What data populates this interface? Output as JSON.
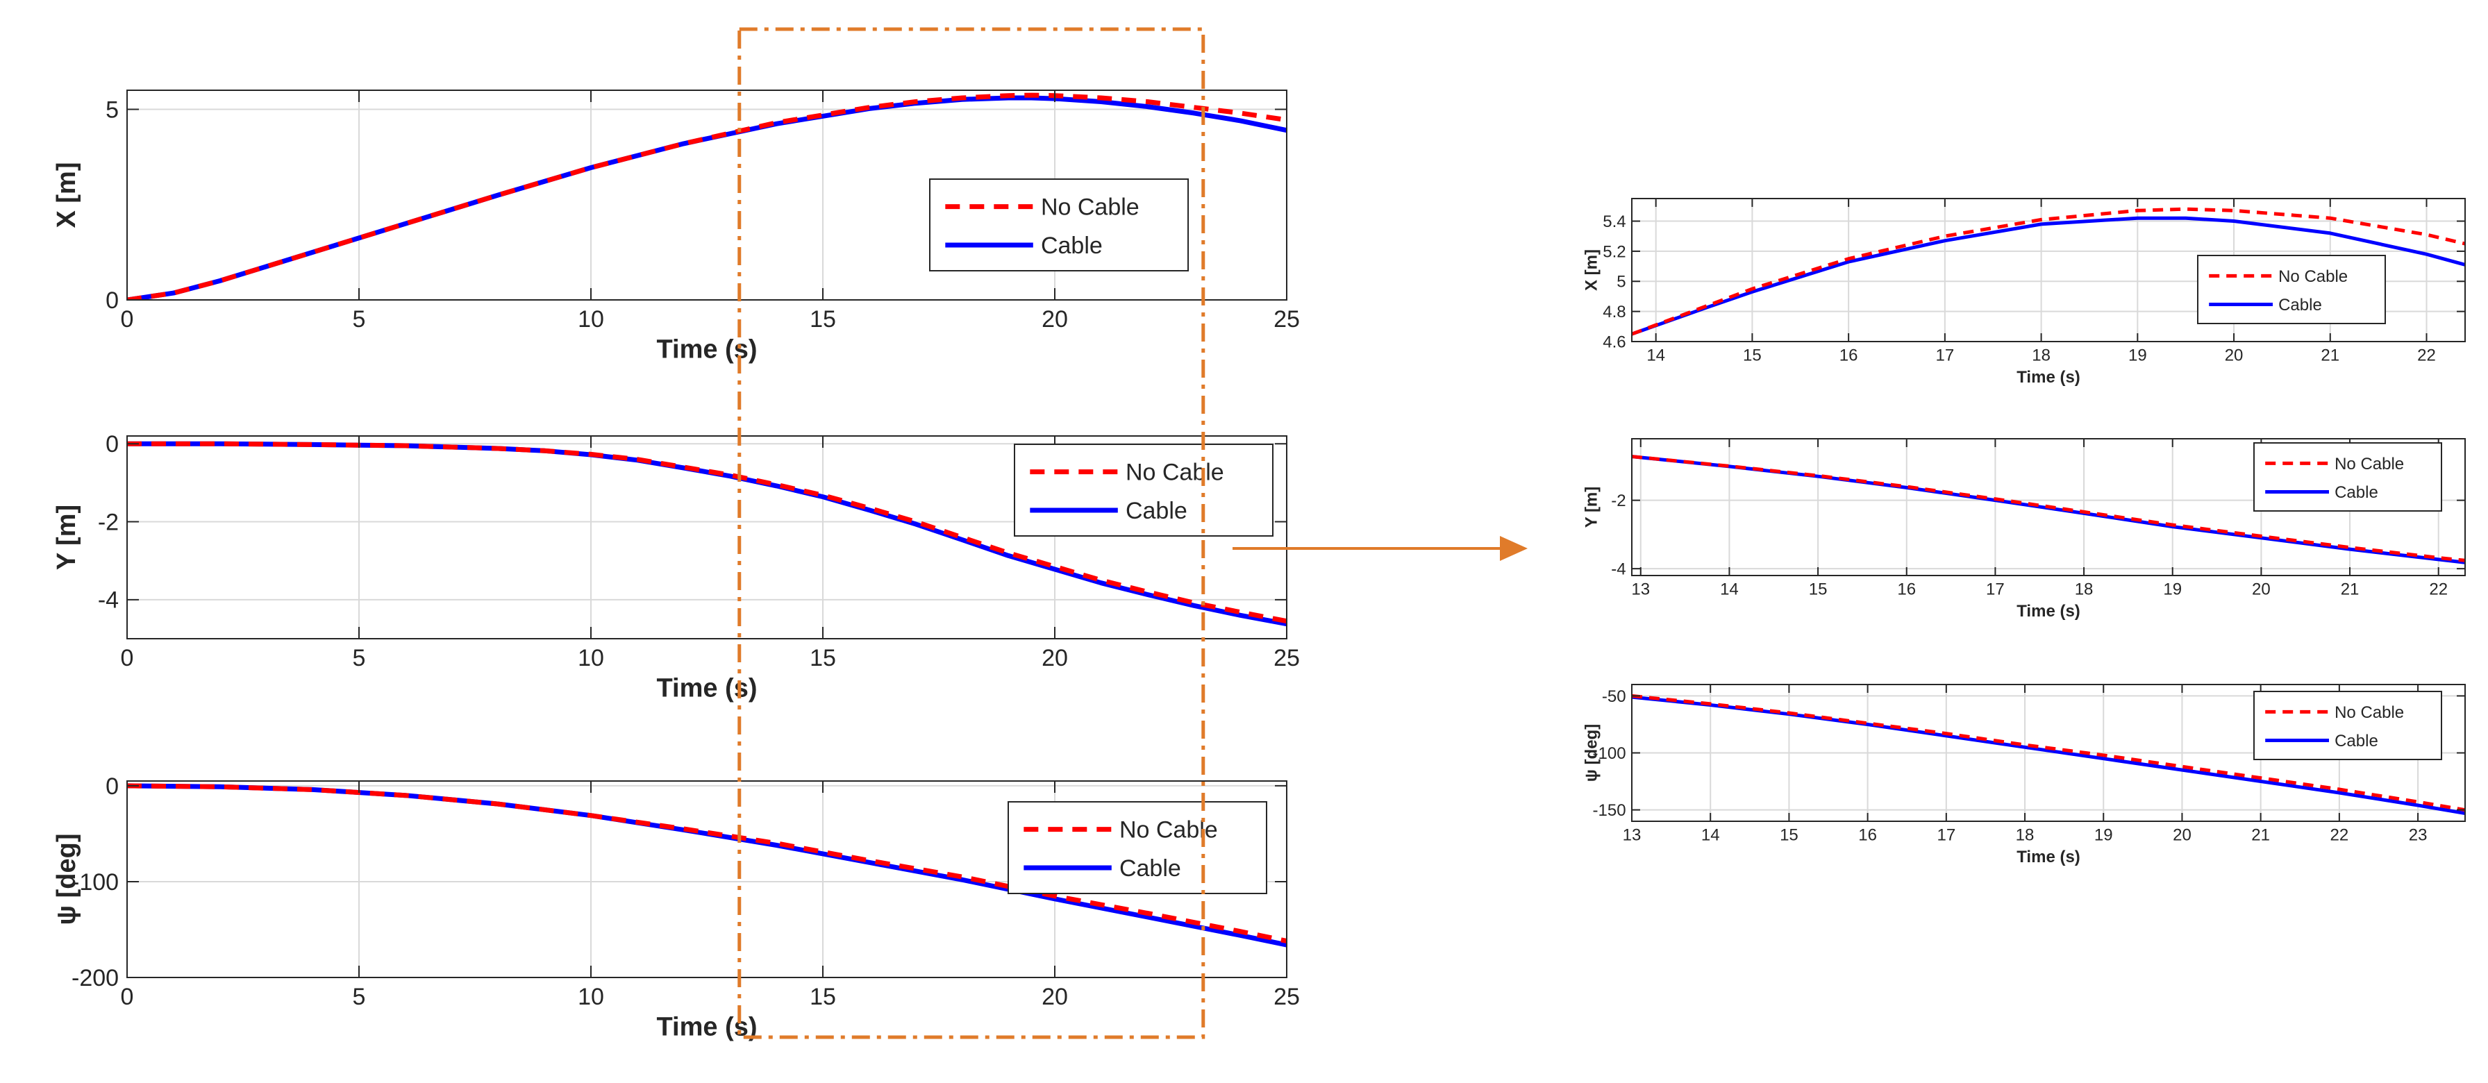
{
  "chart_data": [
    {
      "id": "main-x",
      "type": "line",
      "ylabel": "X [m]",
      "xlabel": "Time (s)",
      "xlim": [
        0,
        25
      ],
      "ylim": [
        0,
        5.5
      ],
      "xticks": [
        0,
        5,
        10,
        15,
        20,
        25
      ],
      "yticks": [
        0,
        5
      ],
      "grid": true,
      "legend": "center-right",
      "series": [
        {
          "name": "No Cable",
          "color": "#ff0000",
          "style": "dashed",
          "x": [
            0,
            1,
            2,
            4,
            6,
            8,
            10,
            12,
            14,
            16,
            17,
            18,
            19,
            19.5,
            20,
            21,
            22,
            23,
            24,
            25
          ],
          "y": [
            0,
            0.18,
            0.5,
            1.25,
            2.0,
            2.75,
            3.47,
            4.1,
            4.65,
            5.05,
            5.2,
            5.3,
            5.36,
            5.37,
            5.36,
            5.3,
            5.2,
            5.05,
            4.9,
            4.72
          ]
        },
        {
          "name": "Cable",
          "color": "#0000ff",
          "style": "solid",
          "x": [
            0,
            1,
            2,
            4,
            6,
            8,
            10,
            12,
            14,
            16,
            17,
            18,
            19,
            19.5,
            20,
            21,
            22,
            23,
            24,
            25
          ],
          "y": [
            0,
            0.18,
            0.5,
            1.25,
            2.0,
            2.75,
            3.47,
            4.1,
            4.62,
            5.02,
            5.16,
            5.26,
            5.3,
            5.3,
            5.28,
            5.2,
            5.07,
            4.9,
            4.7,
            4.45
          ]
        }
      ]
    },
    {
      "id": "main-y",
      "type": "line",
      "ylabel": "Y [m]",
      "xlabel": "Time (s)",
      "xlim": [
        0,
        25
      ],
      "ylim": [
        -5,
        0.2
      ],
      "xticks": [
        0,
        5,
        10,
        15,
        20,
        25
      ],
      "yticks": [
        0,
        -2,
        -4
      ],
      "grid": true,
      "legend": "top-right",
      "series": [
        {
          "name": "No Cable",
          "color": "#ff0000",
          "style": "dashed",
          "x": [
            0,
            2,
            4,
            6,
            8,
            9,
            10,
            11,
            12,
            13,
            14,
            15,
            16,
            17,
            18,
            19,
            20,
            21,
            22,
            23,
            24,
            25
          ],
          "y": [
            0,
            0,
            -0.02,
            -0.05,
            -0.12,
            -0.18,
            -0.27,
            -0.4,
            -0.6,
            -0.8,
            -1.05,
            -1.32,
            -1.65,
            -2.0,
            -2.4,
            -2.8,
            -3.15,
            -3.5,
            -3.8,
            -4.08,
            -4.32,
            -4.55
          ]
        },
        {
          "name": "Cable",
          "color": "#0000ff",
          "style": "solid",
          "x": [
            0,
            2,
            4,
            6,
            8,
            9,
            10,
            11,
            12,
            13,
            14,
            15,
            16,
            17,
            18,
            19,
            20,
            21,
            22,
            23,
            24,
            25
          ],
          "y": [
            0,
            0,
            -0.02,
            -0.05,
            -0.12,
            -0.18,
            -0.28,
            -0.42,
            -0.62,
            -0.83,
            -1.08,
            -1.36,
            -1.7,
            -2.06,
            -2.46,
            -2.87,
            -3.22,
            -3.57,
            -3.87,
            -4.15,
            -4.4,
            -4.62
          ]
        }
      ]
    },
    {
      "id": "main-psi",
      "type": "line",
      "ylabel": "ψ [deg]",
      "xlabel": "Time (s)",
      "xlim": [
        0,
        25
      ],
      "ylim": [
        -200,
        5
      ],
      "xticks": [
        0,
        5,
        10,
        15,
        20,
        25
      ],
      "yticks": [
        0,
        -100,
        -200
      ],
      "grid": true,
      "legend": "center-right",
      "series": [
        {
          "name": "No Cable",
          "color": "#ff0000",
          "style": "dashed",
          "x": [
            0,
            2,
            4,
            6,
            8,
            10,
            12,
            14,
            16,
            18,
            20,
            22,
            24,
            25
          ],
          "y": [
            0,
            -1,
            -4,
            -10,
            -19,
            -31,
            -45,
            -60,
            -78,
            -95,
            -115,
            -133,
            -152,
            -162
          ]
        },
        {
          "name": "Cable",
          "color": "#0000ff",
          "style": "solid",
          "x": [
            0,
            2,
            4,
            6,
            8,
            10,
            12,
            14,
            16,
            18,
            20,
            22,
            24,
            25
          ],
          "y": [
            0,
            -1,
            -4,
            -10,
            -19,
            -31,
            -46,
            -62,
            -80,
            -98,
            -118,
            -137,
            -156,
            -166
          ]
        }
      ]
    },
    {
      "id": "zoom-x",
      "type": "line",
      "ylabel": "X [m]",
      "xlabel": "Time (s)",
      "xlim": [
        13.75,
        22.4
      ],
      "ylim": [
        4.6,
        5.55
      ],
      "xticks": [
        14,
        15,
        16,
        17,
        18,
        19,
        20,
        21,
        22
      ],
      "yticks": [
        4.6,
        4.8,
        5,
        5.2,
        5.4
      ],
      "ytick_labels": [
        "4.6",
        "4.8",
        "5",
        "5.2",
        "5.4"
      ],
      "grid": true,
      "legend": "center-right",
      "series": [
        {
          "name": "No Cable",
          "color": "#ff0000",
          "style": "dashed",
          "x": [
            13.75,
            14.5,
            15,
            16,
            17,
            18,
            19,
            19.5,
            20,
            21,
            22,
            22.4
          ],
          "y": [
            4.65,
            4.83,
            4.95,
            5.15,
            5.3,
            5.41,
            5.47,
            5.48,
            5.47,
            5.42,
            5.31,
            5.25
          ]
        },
        {
          "name": "Cable",
          "color": "#0000ff",
          "style": "solid",
          "x": [
            13.75,
            14.5,
            15,
            16,
            17,
            18,
            19,
            19.5,
            20,
            21,
            22,
            22.4
          ],
          "y": [
            4.65,
            4.82,
            4.93,
            5.13,
            5.27,
            5.38,
            5.42,
            5.42,
            5.4,
            5.32,
            5.18,
            5.11
          ]
        }
      ]
    },
    {
      "id": "zoom-y",
      "type": "line",
      "ylabel": "Y [m]",
      "xlabel": "Time (s)",
      "xlim": [
        12.9,
        22.3
      ],
      "ylim": [
        -4.2,
        -0.2
      ],
      "xticks": [
        13,
        14,
        15,
        16,
        17,
        18,
        19,
        20,
        21,
        22
      ],
      "yticks": [
        -2,
        -4
      ],
      "grid": true,
      "legend": "top-right",
      "series": [
        {
          "name": "No Cable",
          "color": "#ff0000",
          "style": "dashed",
          "x": [
            12.9,
            14,
            15,
            16,
            17,
            18,
            19,
            20,
            21,
            22,
            22.3
          ],
          "y": [
            -0.72,
            -1.0,
            -1.28,
            -1.6,
            -1.96,
            -2.34,
            -2.72,
            -3.05,
            -3.38,
            -3.68,
            -3.76
          ]
        },
        {
          "name": "Cable",
          "color": "#0000ff",
          "style": "solid",
          "x": [
            12.9,
            14,
            15,
            16,
            17,
            18,
            19,
            20,
            21,
            22,
            22.3
          ],
          "y": [
            -0.72,
            -1.01,
            -1.3,
            -1.63,
            -2.0,
            -2.38,
            -2.77,
            -3.1,
            -3.43,
            -3.73,
            -3.82
          ]
        }
      ]
    },
    {
      "id": "zoom-psi",
      "type": "line",
      "ylabel": "ψ [deg]",
      "xlabel": "Time (s)",
      "xlim": [
        13,
        23.6
      ],
      "ylim": [
        -160,
        -40
      ],
      "xticks": [
        13,
        14,
        15,
        16,
        17,
        18,
        19,
        20,
        21,
        22,
        23
      ],
      "yticks": [
        -50,
        -100,
        -150
      ],
      "grid": true,
      "legend": "top-right",
      "series": [
        {
          "name": "No Cable",
          "color": "#ff0000",
          "style": "dashed",
          "x": [
            13,
            14,
            15,
            16,
            17,
            18,
            19,
            20,
            21,
            22,
            23,
            23.6
          ],
          "y": [
            -50,
            -57,
            -65,
            -74,
            -83,
            -93,
            -102,
            -112,
            -122,
            -132,
            -143,
            -150
          ]
        },
        {
          "name": "Cable",
          "color": "#0000ff",
          "style": "solid",
          "x": [
            13,
            14,
            15,
            16,
            17,
            18,
            19,
            20,
            21,
            22,
            23,
            23.6
          ],
          "y": [
            -51,
            -58,
            -66,
            -75,
            -85,
            -95,
            -105,
            -115,
            -125,
            -135,
            -146,
            -153
          ]
        }
      ]
    }
  ],
  "annotation": {
    "highlight_box_color": "#e07b2a",
    "arrow_color": "#e07b2a",
    "highlight_x_range": [
      13.2,
      23.2
    ]
  }
}
